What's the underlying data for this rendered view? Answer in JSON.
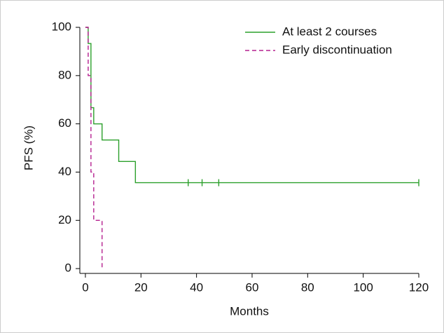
{
  "chart_data": {
    "type": "step",
    "xlabel": "Months",
    "ylabel": "PFS (%)",
    "xlim": [
      -2,
      120
    ],
    "xticks": [
      0,
      20,
      40,
      60,
      80,
      100,
      120
    ],
    "ylim": [
      -2,
      100
    ],
    "yticks": [
      0,
      20,
      40,
      60,
      80,
      100
    ],
    "legend": "upper right",
    "series": [
      {
        "name": "At least 2 courses",
        "color": "#2ca02c",
        "dash": false,
        "x": [
          0,
          1,
          2,
          3,
          6,
          12,
          18,
          120
        ],
        "values": [
          100,
          93.3,
          66.7,
          60,
          53.3,
          44.4,
          35.6,
          35.6
        ],
        "censored_x": [
          37,
          42,
          48,
          120
        ],
        "censored_values": [
          35.6,
          35.6,
          35.6,
          35.6
        ]
      },
      {
        "name": "Early discontinuation",
        "color": "#b5208f",
        "dash": true,
        "x": [
          0,
          1,
          2,
          3,
          6
        ],
        "values": [
          100,
          80,
          40,
          20,
          0
        ]
      }
    ]
  }
}
